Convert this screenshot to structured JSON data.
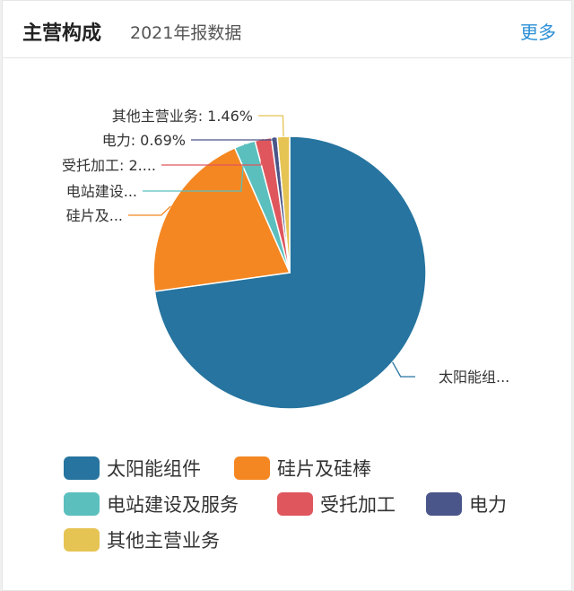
{
  "header": {
    "title": "主营构成",
    "subtitle": "2021年报数据",
    "more_label": "更多"
  },
  "chart_data": {
    "type": "pie",
    "categories": [
      "太阳能组件",
      "硅片及硅棒",
      "电站建设及服务",
      "受托加工",
      "电力",
      "其他主营业务"
    ],
    "values": [
      72.8,
      20.6,
      2.5,
      1.95,
      0.69,
      1.46
    ],
    "colors": [
      "#26749f",
      "#f48722",
      "#5bbfbe",
      "#df565d",
      "#4a5589",
      "#e6c454"
    ],
    "slice_labels": [
      "太阳能组...",
      "硅片及...",
      "电站建设...",
      "受托加工: 2....",
      "电力: 0.69%",
      "其他主营业务: 1.46%"
    ],
    "legend_position": "bottom"
  }
}
